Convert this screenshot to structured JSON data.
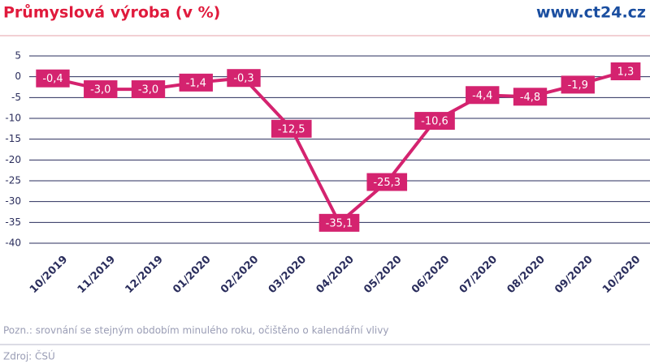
{
  "chart_data": {
    "type": "line",
    "title": "Průmyslová výroba (v %)",
    "site": "www.ct24.cz",
    "note": "Pozn.: srovnání se stejným obdobím minulého roku, očištěno o kalendářní vlivy",
    "source": "Zdroj: ČSÚ",
    "categories": [
      "10/2019",
      "11/2019",
      "12/2019",
      "01/2020",
      "02/2020",
      "03/2020",
      "04/2020",
      "05/2020",
      "06/2020",
      "07/2020",
      "08/2020",
      "09/2020",
      "10/2020"
    ],
    "values": [
      -0.4,
      -3.0,
      -3.0,
      -1.4,
      -0.3,
      -12.5,
      -35.1,
      -25.3,
      -10.6,
      -4.4,
      -4.8,
      -1.9,
      1.3
    ],
    "value_labels": [
      "-0,4",
      "-3,0",
      "-3,0",
      "-1,4",
      "-0,3",
      "-12,5",
      "-35,1",
      "-25,3",
      "-10,6",
      "-4,4",
      "-4,8",
      "-1,9",
      "1,3"
    ],
    "color": "#d4236f",
    "ylim": [
      -40,
      5
    ],
    "yticks": [
      5,
      0,
      -5,
      -10,
      -15,
      -20,
      -25,
      -30,
      -35,
      -40
    ],
    "grid": true
  }
}
